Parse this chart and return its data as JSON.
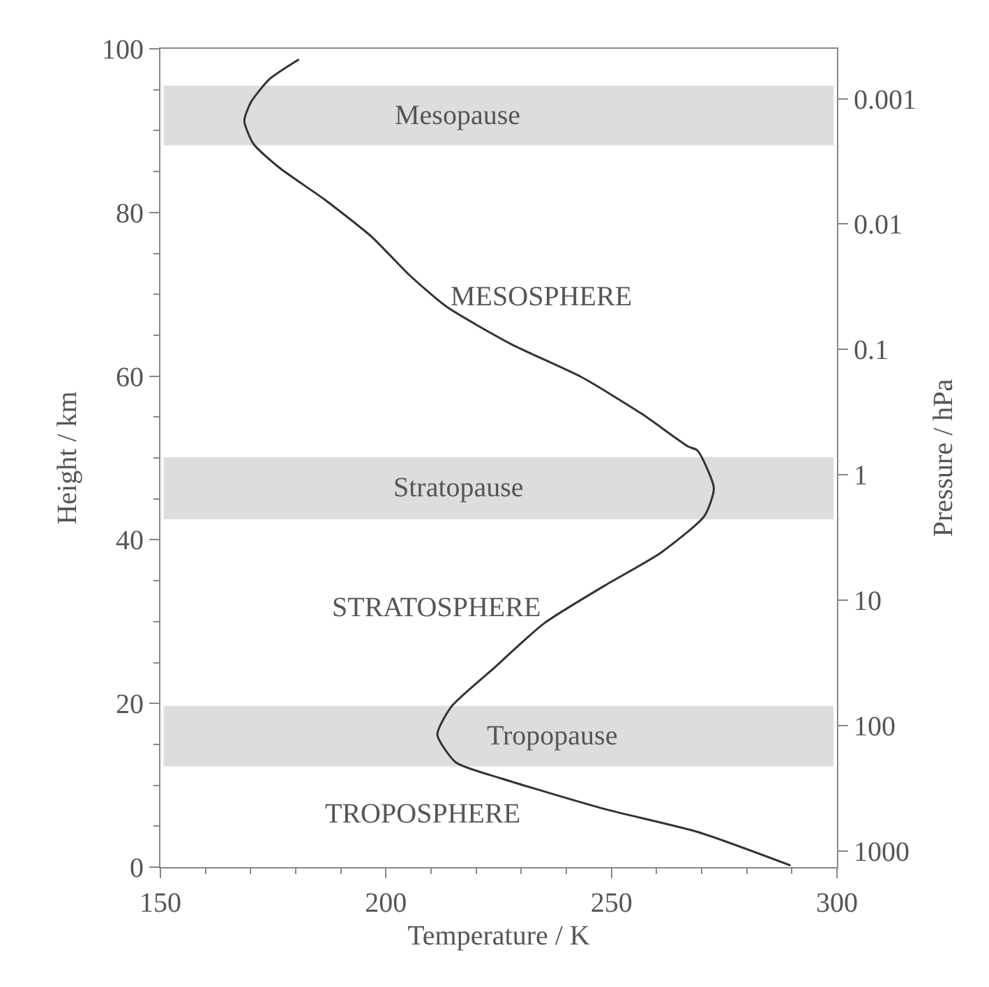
{
  "chart_data": {
    "type": "line",
    "xlabel": "Temperature / K",
    "ylabel": "Height / km",
    "y2label": "Pressure / hPa",
    "xlim": [
      150,
      300
    ],
    "xticks": [
      150,
      200,
      250,
      300
    ],
    "ylim": [
      0,
      100
    ],
    "yticks": [
      0,
      20,
      40,
      60,
      80,
      100
    ],
    "y2lim": [
      1350,
      0.0004
    ],
    "y2ticks": [
      1000,
      100,
      10,
      1,
      0.1,
      0.01,
      0.001
    ],
    "log": "y2",
    "series": [
      {
        "color": "#333333",
        "x": [
          180.7,
          174.2,
          170.1,
          168.6,
          170.6,
          176.3,
          186.6,
          196.9,
          205.1,
          213.4,
          227.8,
          243.3,
          256.7,
          267,
          269.1,
          272.7,
          270.6,
          260.9,
          248.5,
          235.1,
          223.7,
          214.5,
          211.4,
          215.5,
          225.8,
          248.5,
          269.1,
          289.7
        ],
        "values": [
          98.7,
          96.3,
          93.5,
          91.2,
          88.4,
          85.5,
          81.5,
          77,
          72.4,
          68.5,
          63.9,
          59.9,
          55.4,
          51.4,
          50.9,
          46.3,
          42.9,
          38.4,
          34.4,
          29.8,
          24.2,
          19.6,
          16.2,
          12.8,
          10.8,
          7.1,
          4.3,
          0.2
        ]
      }
    ],
    "bands": [
      {
        "axis": "y",
        "from": 88.2,
        "to": 95.5,
        "label": "Mesopause",
        "color": "#dddddd"
      },
      {
        "axis": "y",
        "from": 42.5,
        "to": 50.1,
        "label": "Stratopause",
        "color": "#dddddd"
      },
      {
        "axis": "y",
        "from": 12.3,
        "to": 19.7,
        "label": "Tropopause",
        "color": "#dddddd"
      }
    ],
    "annotations": [
      "MESOSPHERE",
      "STRATOSPHERE",
      "TROPOSPHERE"
    ],
    "grid": false,
    "line_style": "solid",
    "marker": "none"
  }
}
